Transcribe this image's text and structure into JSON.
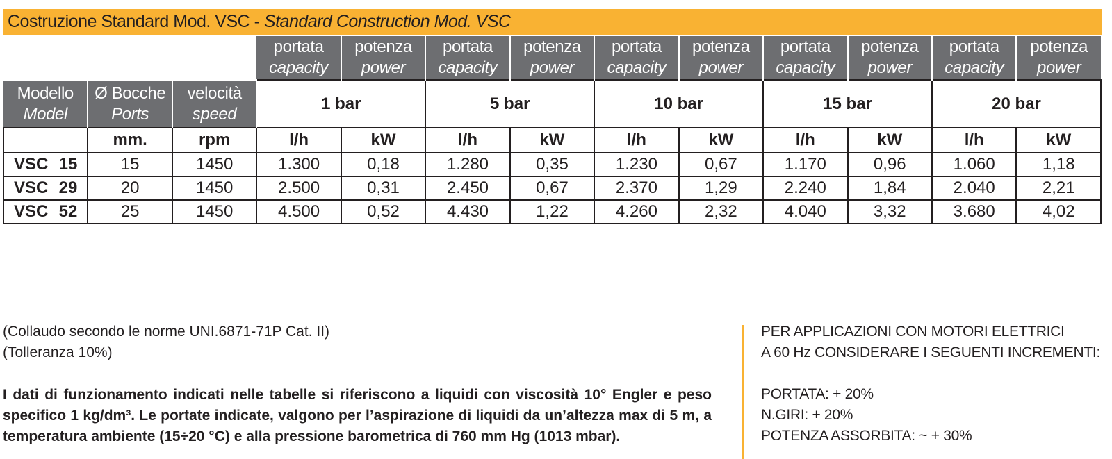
{
  "title": {
    "it": "Costruzione Standard Mod. VSC -",
    "en": "Standard Construction Mod. VSC"
  },
  "column_labels": {
    "capacity_it": "portata",
    "capacity_en": "capacity",
    "power_it": "potenza",
    "power_en": "power",
    "model_it": "Modello",
    "model_en": "Model",
    "ports_it": "Ø Bocche",
    "ports_en": "Ports",
    "speed_it": "velocità",
    "speed_en": "speed"
  },
  "pressures": [
    "1 bar",
    "5 bar",
    "10 bar",
    "15 bar",
    "20 bar"
  ],
  "units": {
    "ports": "mm.",
    "speed": "rpm",
    "capacity": "l/h",
    "power": "kW"
  },
  "rows": [
    {
      "model_prefix": "VSC",
      "model_num": "15",
      "ports": "15",
      "speed": "1450",
      "values": [
        "1.300",
        "0,18",
        "1.280",
        "0,35",
        "1.230",
        "0,67",
        "1.170",
        "0,96",
        "1.060",
        "1,18"
      ]
    },
    {
      "model_prefix": "VSC",
      "model_num": "29",
      "ports": "20",
      "speed": "1450",
      "values": [
        "2.500",
        "0,31",
        "2.450",
        "0,67",
        "2.370",
        "1,29",
        "2.240",
        "1,84",
        "2.040",
        "2,21"
      ]
    },
    {
      "model_prefix": "VSC",
      "model_num": "52",
      "ports": "25",
      "speed": "1450",
      "values": [
        "4.500",
        "0,52",
        "4.430",
        "1,22",
        "4.260",
        "2,32",
        "4.040",
        "3,32",
        "3.680",
        "4,02"
      ]
    }
  ],
  "notes": {
    "test_standard": "(Collaudo secondo le norme UNI.6871-71P Cat. II)",
    "tolerance": "(Tolleranza 10%)",
    "paragraph": "I dati di funzionamento indicati nelle tabelle si riferiscono a liquidi con viscosità 10° Engler e peso specifico 1 kg/dm³. Le portate indicate, valgono per l’aspirazione di liquidi da un’altezza max di 5 m, a temperatura ambiente (15÷20 °C) e alla pressione barometrica di 760 mm Hg (1013 mbar)."
  },
  "side_note": {
    "line1": "PER APPLICAZIONI CON MOTORI ELETTRICI",
    "line2": "A 60 Hz CONSIDERARE I SEGUENTI INCREMENTI:",
    "capacity": "PORTATA: + 20%",
    "rpm": "N.GIRI: + 20%",
    "power": "POTENZA ASSORBITA: ~ + 30%"
  },
  "colors": {
    "title_bar": "#f9b233",
    "header_grey": "#6d6e71",
    "text": "#231f20",
    "divider": "#f9b233"
  }
}
